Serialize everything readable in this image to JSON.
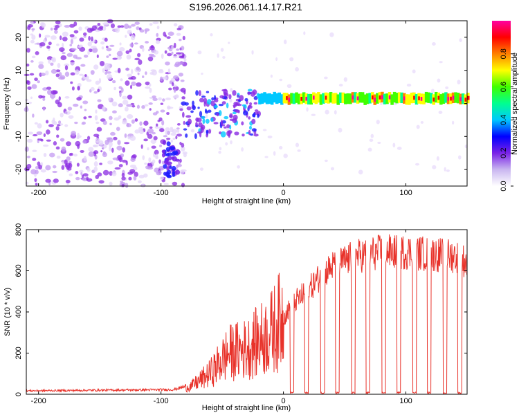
{
  "title": "S196.2026.061.14.17.R21",
  "colors": {
    "snr_line": "#e8322a",
    "colorbar": [
      "#ffffff",
      "#c9b6f0",
      "#7a22e6",
      "#0000ff",
      "#00c8ff",
      "#00ff90",
      "#40ff00",
      "#ffff00",
      "#ff8000",
      "#ff0000",
      "#ff00a0"
    ]
  },
  "chart_data": [
    {
      "type": "heatmap",
      "name": "spectrogram",
      "xlabel": "Height of straight line (km)",
      "ylabel": "Frequency (Hz)",
      "xlim": [
        -210,
        150
      ],
      "ylim": [
        -25,
        25
      ],
      "xticks": [
        -200,
        -100,
        0,
        100
      ],
      "xtick_labels": [
        "-200",
        "-100",
        "0",
        "100"
      ],
      "yticks": [
        -20,
        -10,
        0,
        10,
        20
      ],
      "ytick_labels": [
        "-20",
        "-10",
        "0",
        "10",
        "20"
      ],
      "colorbar": {
        "label": "Normalized spectral amplitude",
        "range": [
          0,
          1
        ],
        "ticks": [
          0.0,
          0.2,
          0.4,
          0.6,
          0.8
        ],
        "tick_labels": [
          "0.0",
          "0.2",
          "0.4",
          "0.6",
          "0.8"
        ]
      },
      "features": [
        {
          "label": "noise",
          "x_range": [
            -210,
            -80
          ],
          "f_range": [
            -25,
            25
          ],
          "amplitude": 0.15
        },
        {
          "label": "burst",
          "x_range": [
            -98,
            -86
          ],
          "f_center": -16,
          "amplitude": 0.3
        },
        {
          "label": "cluster",
          "x_range": [
            -82,
            -20
          ],
          "f_center": -3,
          "amplitude": 0.3
        },
        {
          "label": "tone",
          "x_range": [
            -20,
            150
          ],
          "f_center": 1.5,
          "amplitude": 0.85
        }
      ]
    },
    {
      "type": "line",
      "name": "snr",
      "xlabel": "Height of straight line (km)",
      "ylabel": "SNR (10 * v/v)",
      "xlim": [
        -210,
        150
      ],
      "ylim": [
        0,
        800
      ],
      "xticks": [
        -200,
        -100,
        0,
        100
      ],
      "xtick_labels": [
        "-200",
        "-100",
        "0",
        "100"
      ],
      "yticks": [
        0,
        200,
        400,
        600,
        800
      ],
      "ytick_labels": [
        "0",
        "200",
        "400",
        "600",
        "800"
      ],
      "envelope": [
        {
          "x": -210,
          "y": 15
        },
        {
          "x": -90,
          "y": 20
        },
        {
          "x": -75,
          "y": 40
        },
        {
          "x": -60,
          "y": 100
        },
        {
          "x": -45,
          "y": 200
        },
        {
          "x": -30,
          "y": 220
        },
        {
          "x": -10,
          "y": 300
        },
        {
          "x": 0,
          "y": 380
        },
        {
          "x": 10,
          "y": 460
        },
        {
          "x": 20,
          "y": 510
        },
        {
          "x": 30,
          "y": 580
        },
        {
          "x": 40,
          "y": 630
        },
        {
          "x": 60,
          "y": 680
        },
        {
          "x": 80,
          "y": 700
        },
        {
          "x": 100,
          "y": 700
        },
        {
          "x": 120,
          "y": 690
        },
        {
          "x": 140,
          "y": 680
        },
        {
          "x": 150,
          "y": 650
        }
      ],
      "dropouts_x": [
        7,
        19,
        32,
        44,
        57,
        69,
        82,
        94,
        107,
        119,
        132,
        144
      ],
      "peak_y": 800
    }
  ]
}
